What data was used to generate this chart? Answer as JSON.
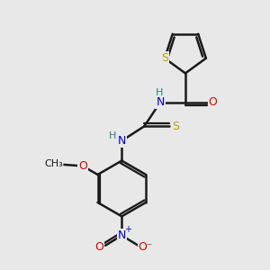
{
  "bg_color": "#e8e8e8",
  "bond_color": "#1a1a1a",
  "bond_width": 1.8,
  "S_color": "#b8a000",
  "N_color": "#0000cc",
  "O_color": "#dd0000",
  "H_color": "#2a8080",
  "figsize": [
    3.0,
    3.0
  ],
  "dpi": 100,
  "xlim": [
    0,
    10
  ],
  "ylim": [
    0,
    10
  ]
}
